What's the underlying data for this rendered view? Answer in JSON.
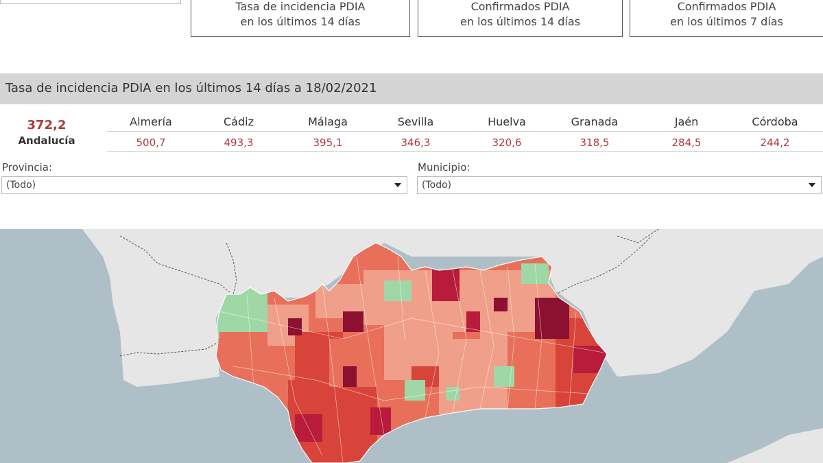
{
  "top_tabs": [
    {
      "line1": "Tasa de incidencia PDIA",
      "line2": "en los últimos 14 días"
    },
    {
      "line1": "Confirmados PDIA",
      "line2": "en los últimos 14 días"
    },
    {
      "line1": "Confirmados PDIA",
      "line2": "en los últimos 7 días"
    }
  ],
  "header": {
    "title": "Tasa de incidencia PDIA en los últimos 14 días a 18/02/2021"
  },
  "summary": {
    "value": "372,2",
    "label": "Andalucía"
  },
  "provinces": [
    {
      "name": "Almería",
      "value": "500,7"
    },
    {
      "name": "Cádiz",
      "value": "493,3"
    },
    {
      "name": "Málaga",
      "value": "395,1"
    },
    {
      "name": "Sevilla",
      "value": "346,3"
    },
    {
      "name": "Huelva",
      "value": "320,6"
    },
    {
      "name": "Granada",
      "value": "318,5"
    },
    {
      "name": "Jaén",
      "value": "284,5"
    },
    {
      "name": "Córdoba",
      "value": "244,2"
    }
  ],
  "filters": {
    "provincia": {
      "label": "Provincia:",
      "value": "(Todo)"
    },
    "municipio": {
      "label": "Municipio:",
      "value": "(Todo)"
    }
  },
  "colors": {
    "accent_value": "#b03a3a",
    "header_band": "#d4d4d4",
    "sea": "#aebfc7",
    "land": "#e6e6e6",
    "map_scale": [
      "#9fd8a6",
      "#f0a08a",
      "#e8705a",
      "#d8443a",
      "#b81c3a",
      "#8c1030"
    ]
  }
}
